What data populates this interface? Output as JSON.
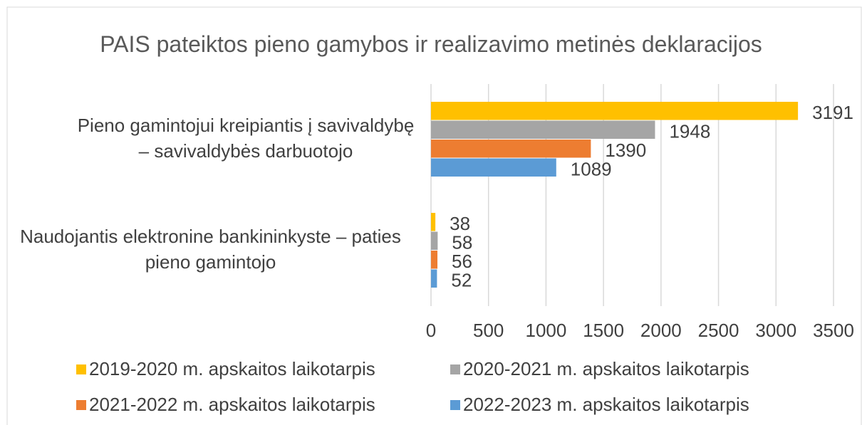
{
  "chart_data": {
    "type": "bar",
    "orientation": "horizontal",
    "title": "PAIS pateiktos pieno gamybos ir realizavimo metinės deklaracijos",
    "categories": [
      "Pieno gamintojui kreipiantis į savivaldybę – savivaldybės darbuotojo",
      "Naudojantis elektronine bankininkyste – paties pieno gamintojo"
    ],
    "series": [
      {
        "name": "2019-2020 m. apskaitos laikotarpis",
        "color": "#ffc000",
        "values": [
          3191,
          38
        ]
      },
      {
        "name": "2020-2021 m. apskaitos laikotarpis",
        "color": "#a5a5a5",
        "values": [
          1948,
          58
        ]
      },
      {
        "name": "2021-2022 m. apskaitos laikotarpis",
        "color": "#ed7d31",
        "values": [
          1390,
          56
        ]
      },
      {
        "name": "2022-2023 m. apskaitos laikotarpis",
        "color": "#5b9bd5",
        "values": [
          1089,
          52
        ]
      }
    ],
    "xlim": [
      0,
      3500
    ],
    "xticks": [
      0,
      500,
      1000,
      1500,
      2000,
      2500,
      3000,
      3500
    ],
    "grid": true,
    "legend": "bottom"
  }
}
